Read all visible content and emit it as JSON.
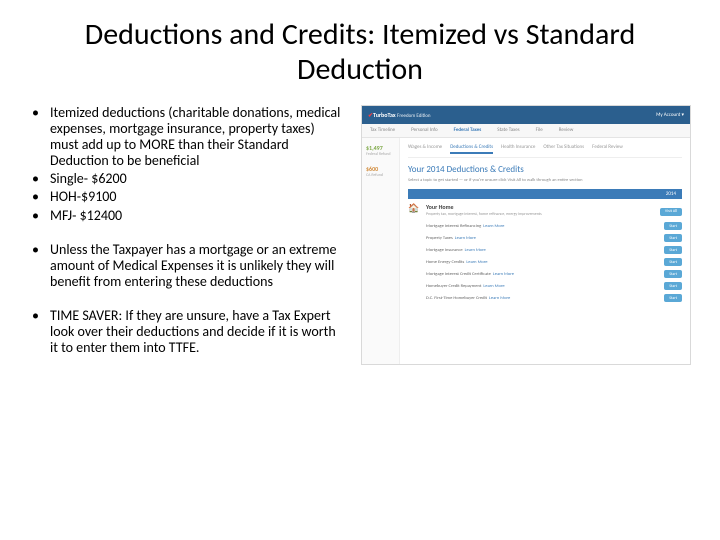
{
  "title": "Deductions and Credits: Itemized vs Standard Deduction",
  "bullets": [
    "Itemized deductions (charitable donations, medical expenses, mortgage insurance, property taxes) must add up to MORE than their Standard Deduction to be beneficial",
    "Single- $6200",
    "HOH-$9100",
    "MFJ- $12400"
  ],
  "bullets2": [
    "Unless the Taxpayer has a mortgage or an extreme amount of Medical Expenses it is unlikely they will benefit from entering these deductions"
  ],
  "bullets3": [
    "TIME SAVER: If they are unsure, have a Tax Expert look over their deductions and decide if it is worth it to enter them into TTFE."
  ],
  "screenshot": {
    "logo_brand": "TurboTax",
    "logo_edition": "Freedom Edition",
    "account_label": "My Account ▾",
    "top_tabs": [
      "Tax Timeline",
      "Personal Info",
      "Federal Taxes",
      "State Taxes",
      "File",
      "Review"
    ],
    "active_top_tab": 2,
    "side_amount1": "$1,497",
    "side_label1": "Federal Refund",
    "side_amount2": "$600",
    "side_label2": "CA Refund",
    "sub_tabs": [
      "Wages & Income",
      "Deductions & Credits",
      "Health Insurance",
      "Other Tax Situations",
      "Federal Review"
    ],
    "active_sub_tab": 1,
    "heading": "Your 2014 Deductions & Credits",
    "sub_text": "Select a topic to get started — or if you're unsure click Visit All to walk through an entire section",
    "year": "2014",
    "section_icon": "🏠",
    "section_title": "Your Home",
    "section_desc": "Property tax, mortgage interest, home refinance, energy improvements",
    "learn_more": "Learn More",
    "items": [
      "Mortgage Interest Refinancing",
      "Property Taxes",
      "Mortgage Insurance",
      "Home Energy Credits",
      "Mortgage Interest Credit Certificate",
      "Homebuyer Credit Repayment",
      "D.C. First-Time Homebuyer Credit"
    ],
    "btn_visit": "Visit All",
    "btn_start": "Start"
  },
  "colors": {
    "header_blue": "#2b5f8e",
    "link_blue": "#3b7bb8",
    "btn_blue": "#5aa8d6",
    "refund_green": "#7aa642",
    "refund_orange": "#d08a3a"
  }
}
